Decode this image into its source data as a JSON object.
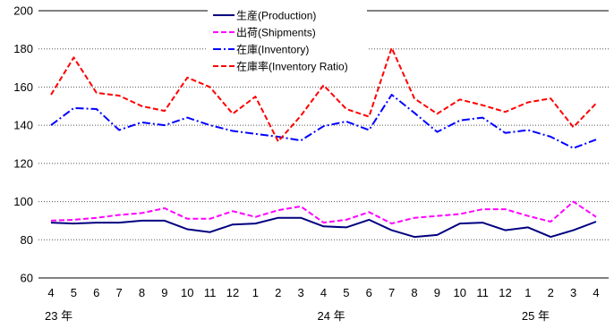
{
  "chart_data": {
    "type": "line",
    "title": "",
    "xlabel": "",
    "ylabel": "",
    "ylim": [
      60,
      200
    ],
    "yticks": [
      60,
      80,
      100,
      120,
      140,
      160,
      180,
      200
    ],
    "grid": "horizontal-dotted",
    "legend_placement": "top-center",
    "x": [
      "4",
      "5",
      "6",
      "7",
      "8",
      "9",
      "10",
      "11",
      "12",
      "1",
      "2",
      "3",
      "4",
      "5",
      "6",
      "7",
      "8",
      "9",
      "10",
      "11",
      "12",
      "1",
      "2",
      "3",
      "4"
    ],
    "year_labels": [
      {
        "index": 0,
        "text": "23 年"
      },
      {
        "index": 12,
        "text": "24 年"
      },
      {
        "index": 21,
        "text": "25 年"
      }
    ],
    "series": [
      {
        "name": "生産(Production)",
        "color": "#000080",
        "style": "solid",
        "values": [
          89,
          88.5,
          89,
          89,
          90,
          90,
          85.5,
          84,
          88,
          88.5,
          91.5,
          91.5,
          87,
          86.5,
          90.5,
          85,
          81.5,
          82.5,
          88.5,
          89,
          85,
          86.5,
          81.5,
          85,
          89.5
        ]
      },
      {
        "name": "出荷(Shipments)",
        "color": "#ff00ff",
        "style": "dashed",
        "values": [
          90,
          90.5,
          91.5,
          93,
          94,
          96.5,
          91,
          91,
          95,
          92,
          95.5,
          97.5,
          89,
          90.5,
          94.5,
          88.5,
          91.5,
          92.5,
          93.5,
          96,
          96,
          92.5,
          89.5,
          100,
          92
        ]
      },
      {
        "name": "在庫(Inventory)",
        "color": "#0000ff",
        "style": "dashdot",
        "values": [
          140,
          149,
          148.5,
          137.5,
          141.5,
          140,
          144,
          140,
          137,
          135.5,
          134,
          132,
          139.5,
          142,
          137.5,
          156,
          146.5,
          136.5,
          142.5,
          144,
          136,
          137.5,
          134,
          128,
          132.5
        ]
      },
      {
        "name": "在庫率(Inventory Ratio)",
        "color": "#ff0000",
        "style": "dashed",
        "values": [
          156,
          175.5,
          157,
          155.5,
          150,
          147.5,
          165,
          160,
          146,
          155,
          131.5,
          145,
          161,
          148.5,
          144.5,
          180.5,
          154,
          146,
          153.5,
          150.5,
          147,
          152,
          154,
          139,
          151.5
        ]
      }
    ]
  }
}
